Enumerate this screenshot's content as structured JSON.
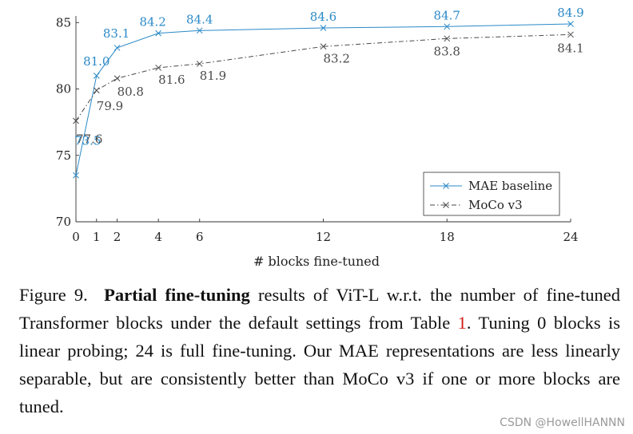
{
  "chart_data": {
    "type": "line",
    "title": "",
    "xlabel": "# blocks fine-tuned",
    "ylabel": "",
    "x": [
      0,
      1,
      2,
      4,
      6,
      12,
      18,
      24
    ],
    "xticks": [
      "0",
      "1",
      "2",
      "4",
      "6",
      "12",
      "18",
      "24"
    ],
    "yticks": [
      "70",
      "75",
      "80",
      "85"
    ],
    "xlim": [
      0,
      24
    ],
    "ylim": [
      70,
      85.5
    ],
    "series": [
      {
        "name": "MAE baseline",
        "values": [
          73.5,
          81.0,
          83.1,
          84.2,
          84.4,
          84.6,
          84.7,
          84.9
        ],
        "labels": [
          "73.5",
          "81.0",
          "83.1",
          "84.2",
          "84.4",
          "84.6",
          "84.7",
          "84.9"
        ],
        "color": "#2a89c7",
        "style": "solid",
        "marker": "x"
      },
      {
        "name": "MoCo v3",
        "values": [
          77.6,
          79.9,
          80.8,
          81.6,
          81.9,
          83.2,
          83.8,
          84.1
        ],
        "labels": [
          "77.6",
          "79.9",
          "80.8",
          "81.6",
          "81.9",
          "83.2",
          "83.8",
          "84.1"
        ],
        "color": "#4a4a4a",
        "style": "dashdot",
        "marker": "x"
      }
    ],
    "legend": {
      "position": "bottom-right"
    }
  },
  "caption": {
    "figure_label": "Figure 9.",
    "bold_title": "Partial fine-tuning",
    "text_part1": "results of ViT-L w.r.t. the number of fine-tuned Transformer blocks under the default settings from Table",
    "table_ref": "1",
    "text_part2": ". Tuning 0 blocks is linear probing; 24 is full fine-tuning. Our MAE representations are less linearly separable, but are consistently better than MoCo v3 if one or more blocks are tuned."
  },
  "watermark": "CSDN @HowellHANNN"
}
